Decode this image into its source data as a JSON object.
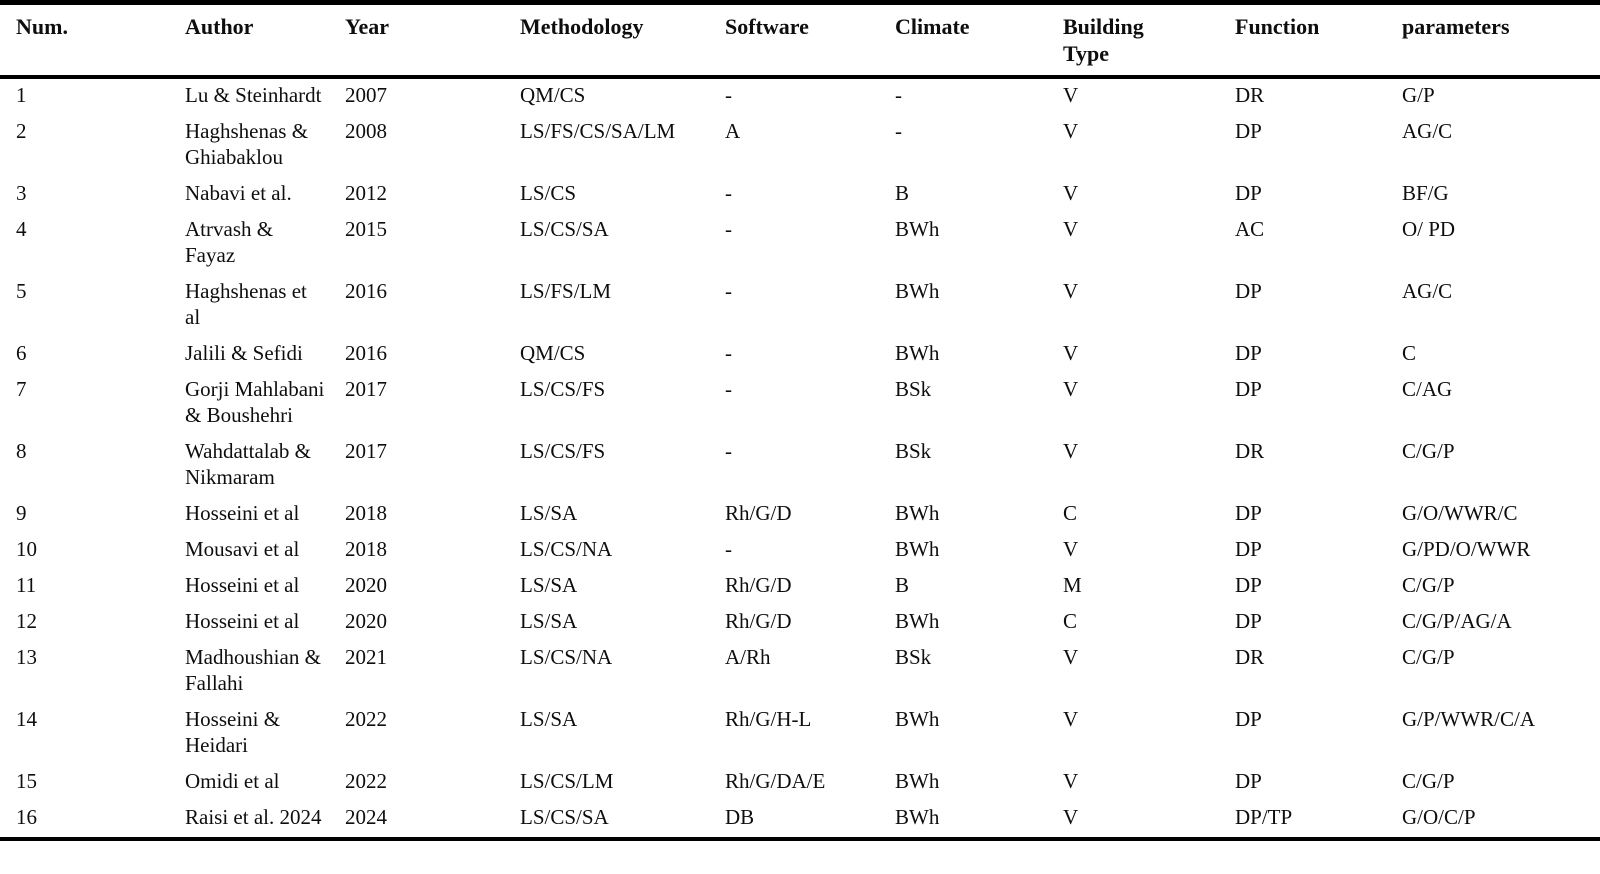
{
  "table": {
    "title_hint": "Review table of building-design studies",
    "columns": [
      "Num.",
      "Author",
      "Year",
      "Methodology",
      "Software",
      "Climate",
      "Building Type",
      "Function",
      "parameters"
    ],
    "rows": [
      {
        "num": "1",
        "author": "Lu & Steinhardt",
        "year": "2007",
        "methodology": "QM/CS",
        "software": "-",
        "climate": "-",
        "building_type": "V",
        "function": "DR",
        "parameters": "G/P"
      },
      {
        "num": "2",
        "author": "Haghshenas & Ghiabaklou",
        "year": "2008",
        "methodology": "LS/FS/CS/SA/LM",
        "software": "A",
        "climate": "-",
        "building_type": "V",
        "function": "DP",
        "parameters": "AG/C"
      },
      {
        "num": "3",
        "author": "Nabavi et al.",
        "year": "2012",
        "methodology": "LS/CS",
        "software": "-",
        "climate": "B",
        "building_type": "V",
        "function": "DP",
        "parameters": "BF/G"
      },
      {
        "num": "4",
        "author": "Atrvash & Fayaz",
        "year": "2015",
        "methodology": "LS/CS/SA",
        "software": "-",
        "climate": "BWh",
        "building_type": "V",
        "function": "AC",
        "parameters": "O/ PD"
      },
      {
        "num": "5",
        "author": "Haghshenas et al",
        "year": "2016",
        "methodology": "LS/FS/LM",
        "software": "-",
        "climate": "BWh",
        "building_type": "V",
        "function": "DP",
        "parameters": "AG/C"
      },
      {
        "num": "6",
        "author": "Jalili & Sefidi",
        "year": "2016",
        "methodology": "QM/CS",
        "software": "-",
        "climate": "BWh",
        "building_type": "V",
        "function": "DP",
        "parameters": "C"
      },
      {
        "num": "7",
        "author": "Gorji Mahlabani & Boushehri",
        "year": "2017",
        "methodology": "LS/CS/FS",
        "software": "-",
        "climate": "BSk",
        "building_type": "V",
        "function": "DP",
        "parameters": "C/AG"
      },
      {
        "num": "8",
        "author": "Wahdattalab & Nikmaram",
        "year": "2017",
        "methodology": "LS/CS/FS",
        "software": "-",
        "climate": "BSk",
        "building_type": "V",
        "function": "DR",
        "parameters": "C/G/P"
      },
      {
        "num": "9",
        "author": "Hosseini et al",
        "year": "2018",
        "methodology": "LS/SA",
        "software": "Rh/G/D",
        "climate": "BWh",
        "building_type": "C",
        "function": "DP",
        "parameters": "G/O/WWR/C"
      },
      {
        "num": "10",
        "author": "Mousavi et al",
        "year": "2018",
        "methodology": "LS/CS/NA",
        "software": "-",
        "climate": "BWh",
        "building_type": "V",
        "function": "DP",
        "parameters": "G/PD/O/WWR"
      },
      {
        "num": "11",
        "author": "Hosseini et al",
        "year": "2020",
        "methodology": "LS/SA",
        "software": "Rh/G/D",
        "climate": "B",
        "building_type": "M",
        "function": "DP",
        "parameters": "C/G/P"
      },
      {
        "num": "12",
        "author": "Hosseini et al",
        "year": "2020",
        "methodology": "LS/SA",
        "software": "Rh/G/D",
        "climate": "BWh",
        "building_type": "C",
        "function": "DP",
        "parameters": "C/G/P/AG/A"
      },
      {
        "num": "13",
        "author": "Madhoushian & Fallahi",
        "year": "2021",
        "methodology": "LS/CS/NA",
        "software": "A/Rh",
        "climate": "BSk",
        "building_type": "V",
        "function": "DR",
        "parameters": "C/G/P"
      },
      {
        "num": "14",
        "author": "Hosseini & Heidari",
        "year": "2022",
        "methodology": "LS/SA",
        "software": "Rh/G/H-L",
        "climate": "BWh",
        "building_type": "V",
        "function": "DP",
        "parameters": "G/P/WWR/C/A"
      },
      {
        "num": "15",
        "author": "Omidi et al",
        "year": "2022",
        "methodology": "LS/CS/LM",
        "software": "Rh/G/DA/E",
        "climate": "BWh",
        "building_type": "V",
        "function": "DP",
        "parameters": "C/G/P"
      },
      {
        "num": "16",
        "author": "Raisi et al. 2024",
        "year": "2024",
        "methodology": "LS/CS/SA",
        "software": "DB",
        "climate": "BWh",
        "building_type": "V",
        "function": "DP/TP",
        "parameters": "G/O/C/P"
      }
    ]
  }
}
